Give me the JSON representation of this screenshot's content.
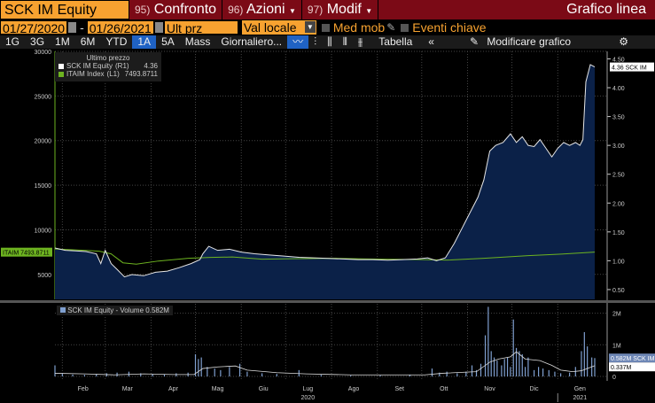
{
  "header": {
    "ticker": "SCK IM Equity",
    "btn_compare_num": "95)",
    "btn_compare": "Confronto",
    "btn_actions_num": "96)",
    "btn_actions": "Azioni",
    "btn_modify_num": "97)",
    "btn_modify": "Modif",
    "title": "Grafico linea"
  },
  "controls": {
    "date_from": "01/27/2020",
    "date_sep": "-",
    "date_to": "01/26/2021",
    "field": "Ult prz",
    "currency": "Val locale",
    "moving_avg": "Med mob",
    "key_events": "Eventi chiave"
  },
  "toolbar": {
    "periods": [
      "1G",
      "3G",
      "1M",
      "6M",
      "YTD",
      "1A",
      "5A",
      "Mass"
    ],
    "active": "1A",
    "frequency": "Giornaliero...",
    "table": "Tabella",
    "edit": "Modificare grafico"
  },
  "colors": {
    "orange": "#f7a230",
    "red": "#7b0a16",
    "price_line": "#e6e6e6",
    "area": "#0b2148",
    "index_line": "#6db320",
    "volume": "#7f9fcf"
  },
  "chart_data": [
    {
      "type": "area",
      "title": "Ultimo prezzo",
      "legend": [
        {
          "name": "SCK IM Equity",
          "axis": "(R1)",
          "value": "4.36"
        },
        {
          "name": "ITAIM Index",
          "axis": "(L1)",
          "value": "7493.8711"
        }
      ],
      "left_axis": {
        "ticks": [
          "30000",
          "25000",
          "20000",
          "15000",
          "10000",
          "5000"
        ],
        "range": [
          2200,
          30000
        ]
      },
      "right_axis": {
        "ticks": [
          "4.50",
          "4.00",
          "3.50",
          "3.00",
          "2.50",
          "2.00",
          "1.50",
          "1.00",
          "0.50"
        ],
        "range": [
          0.33,
          4.63
        ]
      },
      "last_price_label": "4.36 SCK IM",
      "index_label": "ITAIM 7493.8711",
      "x_days_total": 365,
      "price": [
        [
          0,
          1.22
        ],
        [
          7,
          1.18
        ],
        [
          14,
          1.17
        ],
        [
          21,
          1.16
        ],
        [
          28,
          1.12
        ],
        [
          31,
          0.95
        ],
        [
          34,
          1.18
        ],
        [
          38,
          0.95
        ],
        [
          42,
          0.85
        ],
        [
          47,
          0.72
        ],
        [
          52,
          0.76
        ],
        [
          60,
          0.74
        ],
        [
          68,
          0.8
        ],
        [
          76,
          0.82
        ],
        [
          84,
          0.88
        ],
        [
          92,
          0.95
        ],
        [
          98,
          1.02
        ],
        [
          100,
          1.12
        ],
        [
          104,
          1.25
        ],
        [
          110,
          1.18
        ],
        [
          118,
          1.2
        ],
        [
          126,
          1.15
        ],
        [
          135,
          1.12
        ],
        [
          145,
          1.1
        ],
        [
          155,
          1.08
        ],
        [
          165,
          1.06
        ],
        [
          175,
          1.05
        ],
        [
          185,
          1.04
        ],
        [
          195,
          1.03
        ],
        [
          205,
          1.02
        ],
        [
          215,
          1.02
        ],
        [
          225,
          1.01
        ],
        [
          235,
          1.02
        ],
        [
          245,
          1.03
        ],
        [
          252,
          1.05
        ],
        [
          258,
          1.0
        ],
        [
          264,
          1.05
        ],
        [
          270,
          1.3
        ],
        [
          276,
          1.6
        ],
        [
          282,
          1.9
        ],
        [
          286,
          2.1
        ],
        [
          290,
          2.4
        ],
        [
          294,
          2.9
        ],
        [
          298,
          3.0
        ],
        [
          303,
          3.05
        ],
        [
          308,
          3.2
        ],
        [
          312,
          3.05
        ],
        [
          316,
          3.15
        ],
        [
          320,
          3.0
        ],
        [
          324,
          2.98
        ],
        [
          328,
          3.1
        ],
        [
          332,
          2.95
        ],
        [
          336,
          2.8
        ],
        [
          340,
          2.95
        ],
        [
          344,
          3.05
        ],
        [
          348,
          3.0
        ],
        [
          352,
          3.05
        ],
        [
          355,
          3.0
        ],
        [
          357,
          3.1
        ],
        [
          359,
          4.1
        ],
        [
          362,
          4.4
        ],
        [
          365,
          4.36
        ]
      ],
      "index": [
        [
          0,
          7850
        ],
        [
          20,
          7700
        ],
        [
          30,
          7600
        ],
        [
          38,
          7300
        ],
        [
          46,
          6300
        ],
        [
          55,
          6150
        ],
        [
          70,
          6500
        ],
        [
          90,
          6800
        ],
        [
          105,
          6900
        ],
        [
          120,
          6950
        ],
        [
          140,
          6700
        ],
        [
          160,
          6750
        ],
        [
          190,
          6800
        ],
        [
          220,
          6700
        ],
        [
          250,
          6650
        ],
        [
          265,
          6600
        ],
        [
          290,
          6800
        ],
        [
          320,
          7100
        ],
        [
          345,
          7300
        ],
        [
          360,
          7450
        ],
        [
          365,
          7494
        ]
      ]
    },
    {
      "type": "bar",
      "legend": "SCK IM Equity - Volume 0.582M",
      "axis_ticks": [
        "2M",
        "1M",
        "0"
      ],
      "range": [
        0,
        2.1
      ],
      "last_volume_label": "0.582M SCK IM",
      "ma_label": "0.337M",
      "volume": [
        [
          0,
          0.35
        ],
        [
          5,
          0.1
        ],
        [
          12,
          0.06
        ],
        [
          20,
          0.05
        ],
        [
          28,
          0.08
        ],
        [
          35,
          0.1
        ],
        [
          42,
          0.12
        ],
        [
          50,
          0.15
        ],
        [
          58,
          0.1
        ],
        [
          66,
          0.08
        ],
        [
          74,
          0.06
        ],
        [
          82,
          0.1
        ],
        [
          90,
          0.12
        ],
        [
          95,
          0.7
        ],
        [
          97,
          0.55
        ],
        [
          99,
          0.6
        ],
        [
          103,
          0.3
        ],
        [
          108,
          0.25
        ],
        [
          112,
          0.2
        ],
        [
          118,
          0.3
        ],
        [
          125,
          0.4
        ],
        [
          130,
          0.15
        ],
        [
          140,
          0.1
        ],
        [
          150,
          0.08
        ],
        [
          165,
          0.2
        ],
        [
          180,
          0.05
        ],
        [
          200,
          0.03
        ],
        [
          220,
          0.03
        ],
        [
          240,
          0.05
        ],
        [
          255,
          0.25
        ],
        [
          260,
          0.12
        ],
        [
          265,
          0.15
        ],
        [
          272,
          0.1
        ],
        [
          278,
          0.15
        ],
        [
          282,
          0.35
        ],
        [
          285,
          0.2
        ],
        [
          288,
          0.4
        ],
        [
          291,
          1.3
        ],
        [
          293,
          2.2
        ],
        [
          295,
          0.8
        ],
        [
          297,
          0.6
        ],
        [
          299,
          0.5
        ],
        [
          302,
          0.35
        ],
        [
          304,
          0.55
        ],
        [
          306,
          0.6
        ],
        [
          308,
          0.3
        ],
        [
          310,
          1.8
        ],
        [
          312,
          0.9
        ],
        [
          314,
          0.8
        ],
        [
          316,
          0.7
        ],
        [
          318,
          0.3
        ],
        [
          320,
          0.6
        ],
        [
          324,
          0.2
        ],
        [
          327,
          0.3
        ],
        [
          330,
          0.25
        ],
        [
          334,
          0.2
        ],
        [
          338,
          0.15
        ],
        [
          342,
          0.1
        ],
        [
          348,
          0.12
        ],
        [
          352,
          0.3
        ],
        [
          356,
          0.8
        ],
        [
          358,
          1.4
        ],
        [
          360,
          0.95
        ],
        [
          363,
          0.6
        ],
        [
          365,
          0.58
        ]
      ],
      "moving_avg": [
        [
          0,
          0.1
        ],
        [
          20,
          0.08
        ],
        [
          40,
          0.05
        ],
        [
          60,
          0.08
        ],
        [
          80,
          0.06
        ],
        [
          94,
          0.06
        ],
        [
          100,
          0.25
        ],
        [
          110,
          0.3
        ],
        [
          122,
          0.33
        ],
        [
          130,
          0.2
        ],
        [
          150,
          0.12
        ],
        [
          170,
          0.08
        ],
        [
          200,
          0.05
        ],
        [
          250,
          0.05
        ],
        [
          262,
          0.1
        ],
        [
          285,
          0.15
        ],
        [
          294,
          0.45
        ],
        [
          300,
          0.55
        ],
        [
          308,
          0.62
        ],
        [
          312,
          0.78
        ],
        [
          318,
          0.55
        ],
        [
          328,
          0.5
        ],
        [
          336,
          0.35
        ],
        [
          342,
          0.2
        ],
        [
          350,
          0.15
        ],
        [
          356,
          0.18
        ],
        [
          365,
          0.34
        ]
      ]
    }
  ],
  "x_axis": {
    "months": [
      "Feb",
      "Mar",
      "Apr",
      "Mag",
      "Giu",
      "Lug",
      "Ago",
      "Set",
      "Ott",
      "Nov",
      "Dic",
      "Gen"
    ],
    "years": [
      "2020",
      "2021"
    ]
  }
}
